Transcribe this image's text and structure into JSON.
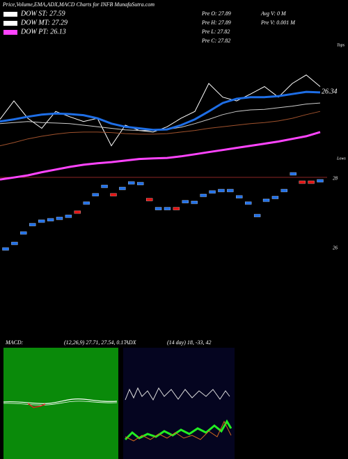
{
  "header": {
    "title": "Price,Volume,EMA,ADX,MACD Charts for INFB MunafaSutra.com"
  },
  "legend": [
    {
      "name": "DOW ST: 27.59",
      "color": "#ffffff"
    },
    {
      "name": "DOW MT: 27.29",
      "color": "#ffffff"
    },
    {
      "name": "DOW PT: 26.13",
      "color": "#ff44ff"
    }
  ],
  "ohlc": [
    "Pre  O: 27.89",
    "Pre  H: 27.89",
    "Pre  L: 27.82",
    "Pre  C: 27.82"
  ],
  "volume": [
    "Avg  V: 0  M",
    "Pre  V: 0.001 M"
  ],
  "price_panel": {
    "last_label": "26.34",
    "tops": "Tops",
    "lows": "Lows",
    "ylim": [
      24.64,
      27.3
    ],
    "series": [
      {
        "color": "#ffffff",
        "width": 1,
        "values": [
          25.83,
          26.18,
          25.85,
          25.66,
          25.98,
          25.88,
          25.79,
          25.85,
          25.33,
          25.72,
          25.62,
          25.59,
          25.69,
          25.85,
          25.98,
          26.51,
          26.25,
          26.18,
          26.31,
          26.45,
          26.25,
          26.51,
          26.67,
          26.45
        ]
      },
      {
        "color": "#cccccc",
        "width": 1,
        "values": [
          25.75,
          25.77,
          25.79,
          25.77,
          25.76,
          25.75,
          25.72,
          25.69,
          25.66,
          25.63,
          25.62,
          25.62,
          25.64,
          25.68,
          25.75,
          25.83,
          25.92,
          25.98,
          26.01,
          26.02,
          26.05,
          26.08,
          26.12,
          26.14
        ]
      },
      {
        "color": "#a0522d",
        "width": 1,
        "values": [
          25.33,
          25.39,
          25.46,
          25.51,
          25.55,
          25.58,
          25.59,
          25.59,
          25.58,
          25.56,
          25.55,
          25.55,
          25.56,
          25.59,
          25.62,
          25.66,
          25.69,
          25.72,
          25.75,
          25.77,
          25.8,
          25.85,
          25.92,
          25.98
        ]
      },
      {
        "color": "#1e6ee6",
        "width": 3,
        "values": [
          25.79,
          25.83,
          25.88,
          25.92,
          25.94,
          25.93,
          25.91,
          25.85,
          25.75,
          25.69,
          25.66,
          25.63,
          25.64,
          25.72,
          25.83,
          25.98,
          26.14,
          26.22,
          26.25,
          26.25,
          26.27,
          26.31,
          26.35,
          26.34
        ]
      },
      {
        "color": "#ff44ff",
        "width": 3,
        "values": [
          24.69,
          24.73,
          24.77,
          24.83,
          24.88,
          24.93,
          24.97,
          25.0,
          25.02,
          25.05,
          25.08,
          25.09,
          25.1,
          25.13,
          25.17,
          25.21,
          25.25,
          25.29,
          25.33,
          25.37,
          25.41,
          25.46,
          25.51,
          25.59
        ]
      }
    ]
  },
  "box_panel": {
    "ylim": [
      25.96,
      28.04
    ],
    "yticks": [
      28,
      26
    ],
    "values": [
      25.98,
      26.14,
      26.44,
      26.68,
      26.78,
      26.82,
      26.86,
      26.92,
      27.04,
      27.3,
      27.54,
      27.78,
      27.54,
      27.72,
      27.88,
      27.86,
      27.4,
      27.14,
      27.14,
      27.14,
      27.34,
      27.32,
      27.52,
      27.62,
      27.66,
      27.66,
      27.48,
      27.3,
      26.94,
      27.38,
      27.46,
      27.66,
      28.14,
      27.9,
      27.9,
      27.94
    ],
    "colors": [
      "#1e6ee6",
      "#1e6ee6",
      "#1e6ee6",
      "#1e6ee6",
      "#1e6ee6",
      "#1e6ee6",
      "#1e6ee6",
      "#1e6ee6",
      "#e01010",
      "#1e6ee6",
      "#1e6ee6",
      "#1e6ee6",
      "#e01010",
      "#1e6ee6",
      "#1e6ee6",
      "#1e6ee6",
      "#e01010",
      "#1e6ee6",
      "#1e6ee6",
      "#e01010",
      "#1e6ee6",
      "#1e6ee6",
      "#1e6ee6",
      "#1e6ee6",
      "#1e6ee6",
      "#1e6ee6",
      "#1e6ee6",
      "#1e6ee6",
      "#1e6ee6",
      "#1e6ee6",
      "#1e6ee6",
      "#1e6ee6",
      "#1e6ee6",
      "#e01010",
      "#e01010",
      "#1e6ee6"
    ]
  },
  "macd": {
    "label": "MACD:",
    "params": "(12,26,9) 27.71, 27.54, 0.17"
  },
  "adx": {
    "label": "ADX",
    "params": "(14  day) 18, -33, 42"
  }
}
